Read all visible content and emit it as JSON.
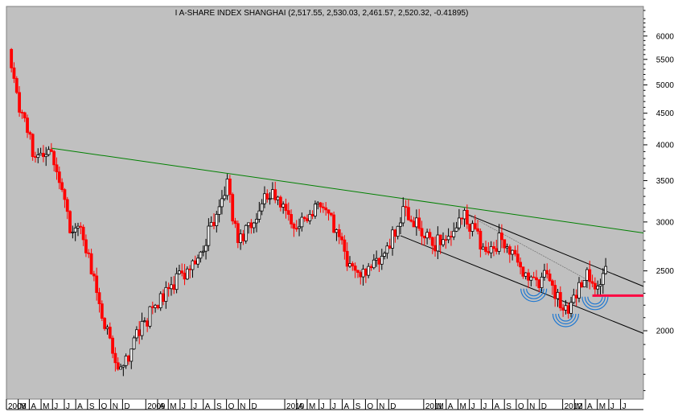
{
  "chart_data": {
    "type": "candlestick",
    "title": "I A-SHARE INDEX SHANGHAI (2,517.55, 2,530.03, 2,461.57, 2,520.32, -0.41895)",
    "xlabel": "",
    "ylabel": "",
    "y_scale": "log",
    "ylim": [
      1550,
      6700
    ],
    "x_range": [
      "2008-01-01",
      "2012-07-31"
    ],
    "grid": false,
    "colors": {
      "plot_bg": "#c0c0c0",
      "up": "#000000",
      "down": "#ff0000",
      "resistance": "#008000",
      "channel": "#000000",
      "support_level": "#ff0040",
      "arcs": "#1e78d2"
    },
    "y_ticks": [
      {
        "value": 6000,
        "label": "6000"
      },
      {
        "value": 5500,
        "label": "5500"
      },
      {
        "value": 5000,
        "label": "5000"
      },
      {
        "value": 4500,
        "label": "4500"
      },
      {
        "value": 4000,
        "label": "4000"
      },
      {
        "value": 3500,
        "label": "3500"
      },
      {
        "value": 3000,
        "label": "3000"
      },
      {
        "value": 2500,
        "label": "2500"
      },
      {
        "value": 2000,
        "label": "2000"
      }
    ],
    "x_ticks": [
      {
        "date": "2008-01-01",
        "label": "2008"
      },
      {
        "date": "2008-02-01",
        "label": "M"
      },
      {
        "date": "2008-03-01",
        "label": "A"
      },
      {
        "date": "2008-04-01",
        "label": "M"
      },
      {
        "date": "2008-05-01",
        "label": "J"
      },
      {
        "date": "2008-06-01",
        "label": "J"
      },
      {
        "date": "2008-07-01",
        "label": "A"
      },
      {
        "date": "2008-08-01",
        "label": "S"
      },
      {
        "date": "2008-09-01",
        "label": "O"
      },
      {
        "date": "2008-10-01",
        "label": "N"
      },
      {
        "date": "2008-11-01",
        "label": "D"
      },
      {
        "date": "2009-01-01",
        "label": "2009"
      },
      {
        "date": "2009-02-01",
        "label": "A"
      },
      {
        "date": "2009-03-01",
        "label": "M"
      },
      {
        "date": "2009-04-01",
        "label": "J"
      },
      {
        "date": "2009-05-01",
        "label": "J"
      },
      {
        "date": "2009-06-01",
        "label": "A"
      },
      {
        "date": "2009-07-01",
        "label": "S"
      },
      {
        "date": "2009-08-01",
        "label": "O"
      },
      {
        "date": "2009-09-01",
        "label": "N"
      },
      {
        "date": "2009-10-01",
        "label": "D"
      },
      {
        "date": "2010-01-01",
        "label": "2010"
      },
      {
        "date": "2010-02-01",
        "label": "A"
      },
      {
        "date": "2010-03-01",
        "label": "M"
      },
      {
        "date": "2010-04-01",
        "label": "J"
      },
      {
        "date": "2010-05-01",
        "label": "J"
      },
      {
        "date": "2010-06-01",
        "label": "A"
      },
      {
        "date": "2010-07-01",
        "label": "S"
      },
      {
        "date": "2010-08-01",
        "label": "O"
      },
      {
        "date": "2010-09-01",
        "label": "N"
      },
      {
        "date": "2010-10-01",
        "label": "D"
      },
      {
        "date": "2011-01-01",
        "label": "2011"
      },
      {
        "date": "2011-02-01",
        "label": "M"
      },
      {
        "date": "2011-03-01",
        "label": "A"
      },
      {
        "date": "2011-04-01",
        "label": "M"
      },
      {
        "date": "2011-05-01",
        "label": "J"
      },
      {
        "date": "2011-06-01",
        "label": "J"
      },
      {
        "date": "2011-07-01",
        "label": "A"
      },
      {
        "date": "2011-08-01",
        "label": "S"
      },
      {
        "date": "2011-09-01",
        "label": "O"
      },
      {
        "date": "2011-10-01",
        "label": "N"
      },
      {
        "date": "2011-11-01",
        "label": "D"
      },
      {
        "date": "2012-01-01",
        "label": "2012"
      },
      {
        "date": "2012-02-01",
        "label": "M"
      },
      {
        "date": "2012-03-01",
        "label": "A"
      },
      {
        "date": "2012-04-01",
        "label": "M"
      },
      {
        "date": "2012-05-01",
        "label": "J"
      },
      {
        "date": "2012-06-01",
        "label": "J"
      }
    ],
    "path_keypoints": [
      {
        "date": "2008-01-07",
        "value": 5650
      },
      {
        "date": "2008-01-28",
        "value": 4800
      },
      {
        "date": "2008-03-17",
        "value": 3800
      },
      {
        "date": "2008-04-28",
        "value": 3950
      },
      {
        "date": "2008-06-16",
        "value": 2900
      },
      {
        "date": "2008-07-21",
        "value": 2850
      },
      {
        "date": "2008-09-15",
        "value": 2050
      },
      {
        "date": "2008-10-27",
        "value": 1720
      },
      {
        "date": "2008-12-15",
        "value": 2000
      },
      {
        "date": "2009-02-16",
        "value": 2300
      },
      {
        "date": "2009-05-25",
        "value": 2650
      },
      {
        "date": "2009-08-03",
        "value": 3450
      },
      {
        "date": "2009-08-31",
        "value": 2750
      },
      {
        "date": "2009-11-23",
        "value": 3350
      },
      {
        "date": "2010-02-01",
        "value": 2980
      },
      {
        "date": "2010-04-12",
        "value": 3200
      },
      {
        "date": "2010-07-05",
        "value": 2450
      },
      {
        "date": "2010-09-20",
        "value": 2650
      },
      {
        "date": "2010-11-08",
        "value": 3150
      },
      {
        "date": "2011-01-24",
        "value": 2750
      },
      {
        "date": "2011-04-18",
        "value": 3050
      },
      {
        "date": "2011-06-20",
        "value": 2650
      },
      {
        "date": "2011-07-18",
        "value": 2800
      },
      {
        "date": "2011-10-24",
        "value": 2350
      },
      {
        "date": "2011-11-14",
        "value": 2500
      },
      {
        "date": "2012-01-09",
        "value": 2150
      },
      {
        "date": "2012-03-05",
        "value": 2450
      },
      {
        "date": "2012-03-26",
        "value": 2270
      },
      {
        "date": "2012-04-23",
        "value": 2520
      }
    ],
    "annotations": {
      "resistance_line": {
        "from": {
          "date": "2008-04-28",
          "value": 3950
        },
        "to": {
          "date": "2012-07-31",
          "value": 2880
        }
      },
      "channel_upper": {
        "from": {
          "date": "2011-04-18",
          "value": 3100
        },
        "to": {
          "date": "2012-07-31",
          "value": 2360
        }
      },
      "channel_lower": {
        "from": {
          "date": "2010-11-01",
          "value": 2850
        },
        "to": {
          "date": "2012-07-31",
          "value": 1980
        }
      },
      "thin_trendline": {
        "from": {
          "date": "2011-04-18",
          "value": 3100
        },
        "to": {
          "date": "2012-03-05",
          "value": 2420
        }
      },
      "support_level": {
        "from": {
          "date": "2012-03-19",
          "value": 2280
        },
        "to": {
          "date": "2012-07-31",
          "value": 2280
        }
      },
      "arcs": [
        {
          "date": "2011-10-17",
          "value": 2340
        },
        {
          "date": "2012-01-09",
          "value": 2130
        },
        {
          "date": "2012-03-26",
          "value": 2270
        }
      ]
    }
  }
}
